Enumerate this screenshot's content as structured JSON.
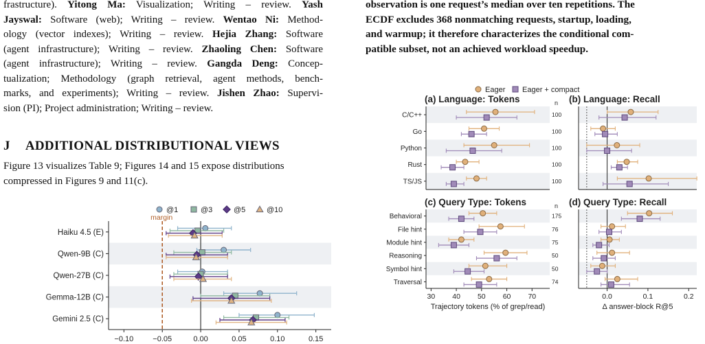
{
  "left_column": {
    "credits": [
      {
        "name": "",
        "role": "frastructure); Writing – review."
      },
      {
        "name": "Yitong Ma:",
        "role": "Visualization; Writing – review."
      },
      {
        "name": "Yash Jayswal:",
        "role": "Software (web); Writing – review."
      },
      {
        "name": "Wentao Ni:",
        "role": "Methodology (vector indexes); Writing – review."
      },
      {
        "name": "Hejia Zhang:",
        "role": "Software (agent infrastructure); Writing – review."
      },
      {
        "name": "Zhaoling Chen:",
        "role": "Software (agent infrastructure); Writing – review."
      },
      {
        "name": "Gangda Deng:",
        "role": "Conceptualization; Methodology (graph retrieval, agent methods, benchmarks, and experiments); Writing – review."
      },
      {
        "name": "Jishen Zhao:",
        "role": "Supervision (PI); Project administration; Writing – review."
      }
    ],
    "credit_lines": [
      "frastructure). |Yitong Ma:| Visualization; Writing – review. |Yash|",
      "|Jayswal:| Software (web); Writing – review. |Wentao Ni:| Method-",
      "ology (vector indexes); Writing – review. |Hejia Zhang:| Software",
      "(agent infrastructure); Writing – review. |Zhaoling Chen:| Software",
      "(agent infrastructure); Writing – review. |Gangda Deng:| Concep-",
      "tualization; Methodology (graph retrieval, agent methods, bench-",
      "marks, and experiments); Writing – review. |Jishen Zhao:| Supervi-",
      "sion (PI); Project administration; Writing – review."
    ],
    "section_letter": "J",
    "section_title": "ADDITIONAL DISTRIBUTIONAL VIEWS",
    "section_body_1": "Figure 13 visualizes Table 9; Figures 14 and 15 expose distributions",
    "section_body_2": "compressed in Figures 9 and 11(c)."
  },
  "right_column": {
    "caption_lines": [
      "observation is one request’s median over ten repetitions. The",
      "ECDF excludes 368 nonmatching requests, startup, loading,",
      "and warmup; it therefore characterizes the conditional com-",
      "patible subset, not an achieved workload speedup."
    ]
  },
  "chart_data": [
    {
      "type": "scatter",
      "legend": [
        "@1",
        "@3",
        "@5",
        "@10"
      ],
      "legend_placement": "top",
      "colors": {
        "@1": "#8fb3cc",
        "@3": "#8fb8a0",
        "@5": "#5b3a86",
        "@10": "#e0b483"
      },
      "reference_line_label": "margin",
      "reference_line_x": -0.05,
      "zero_line": 0,
      "categories": [
        "Haiku 4.5 (E)",
        "Qwen-9B (C)",
        "Qwen-27B (C)",
        "Gemma-12B (C)",
        "Gemini 2.5 (C)"
      ],
      "xticks": [
        "−0.10",
        "−0.05",
        "0.00",
        "0.05",
        "0.10",
        "0.15"
      ],
      "xlim": [
        -0.12,
        0.17
      ],
      "series": [
        {
          "name": "@1",
          "values": [
            0.006,
            0.03,
            0.002,
            0.077,
            0.1
          ],
          "lo": [
            -0.03,
            -0.005,
            -0.03,
            0.03,
            0.05
          ],
          "hi": [
            0.04,
            0.065,
            0.035,
            0.125,
            0.148
          ]
        },
        {
          "name": "@3",
          "values": [
            -0.004,
            0.002,
            0.0,
            0.045,
            0.072
          ],
          "lo": [
            -0.04,
            -0.035,
            -0.035,
            0.0,
            0.03
          ],
          "hi": [
            0.03,
            0.04,
            0.035,
            0.09,
            0.115
          ]
        },
        {
          "name": "@5",
          "values": [
            -0.01,
            -0.005,
            -0.003,
            0.04,
            0.068
          ],
          "lo": [
            -0.045,
            -0.045,
            -0.04,
            -0.01,
            0.025
          ],
          "hi": [
            0.028,
            0.035,
            0.035,
            0.09,
            0.11
          ]
        },
        {
          "name": "@10",
          "values": [
            -0.008,
            -0.006,
            0.003,
            0.04,
            0.066
          ],
          "lo": [
            -0.042,
            -0.045,
            -0.035,
            -0.012,
            0.02
          ],
          "hi": [
            0.028,
            0.035,
            0.04,
            0.092,
            0.112
          ]
        }
      ]
    },
    {
      "type": "scatter",
      "legend": [
        "Eager",
        "Eager + compact"
      ],
      "legend_placement": "top",
      "colors": {
        "Eager": "#e0b07a",
        "Eager + compact": "#a08ab8"
      },
      "panels": [
        {
          "title": "(a) Language: Tokens",
          "categories": [
            "C/C++",
            "Go",
            "Python",
            "Rust",
            "TS/JS"
          ],
          "n_header": "n",
          "n_values": [
            "100",
            "100",
            "100",
            "100",
            "100"
          ],
          "series": [
            {
              "name": "Eager",
              "values": [
                55.5,
                51,
                55,
                43.5,
                48
              ],
              "lo": [
                44,
                45,
                43,
                40,
                44
              ],
              "hi": [
                71,
                57,
                69,
                49,
                52
              ]
            },
            {
              "name": "Eager + compact",
              "values": [
                52,
                46,
                46.5,
                38.5,
                39
              ],
              "lo": [
                40,
                42,
                36,
                34,
                36
              ],
              "hi": [
                64,
                52,
                58,
                43,
                43
              ]
            }
          ]
        },
        {
          "title": "(b) Language: Recall",
          "categories": [
            "C/C++",
            "Go",
            "Python",
            "Rust",
            "TS/JS"
          ],
          "series": [
            {
              "name": "Eager",
              "values": [
                0.058,
                -0.01,
                0.024,
                0.048,
                0.102
              ],
              "lo": [
                0.0,
                -0.04,
                -0.05,
                0.025,
                0.025
              ],
              "hi": [
                0.125,
                0.02,
                0.08,
                0.075,
                0.22
              ]
            },
            {
              "name": "Eager + compact",
              "values": [
                0.043,
                -0.005,
                0.0,
                0.03,
                0.055
              ],
              "lo": [
                -0.02,
                -0.03,
                -0.05,
                0.01,
                -0.01
              ],
              "hi": [
                0.12,
                0.025,
                0.06,
                0.05,
                0.15
              ]
            }
          ]
        },
        {
          "title": "(c) Query Type: Tokens",
          "categories": [
            "Behavioral",
            "File hint",
            "Module hint",
            "Reasoning",
            "Symbol hint",
            "Traversal"
          ],
          "n_header": "n",
          "n_values": [
            "175",
            "76",
            "75",
            "50",
            "50",
            "74"
          ],
          "series": [
            {
              "name": "Eager",
              "values": [
                50.5,
                57.5,
                42,
                59.5,
                51.5,
                53
              ],
              "lo": [
                45,
                49,
                37,
                51,
                45,
                46
              ],
              "hi": [
                56,
                67,
                47,
                68,
                60,
                60
              ]
            },
            {
              "name": "Eager + compact",
              "values": [
                42,
                49.5,
                39,
                56,
                44.5,
                49
              ],
              "lo": [
                37,
                43,
                33,
                48,
                39,
                43
              ],
              "hi": [
                47,
                56,
                45,
                64,
                51,
                56
              ]
            }
          ]
        },
        {
          "title": "(d) Query Type: Recall",
          "categories": [
            "Behavioral",
            "File hint",
            "Module hint",
            "Reasoning",
            "Symbol hint",
            "Traversal"
          ],
          "series": [
            {
              "name": "Eager",
              "values": [
                0.103,
                0.012,
                0.006,
                0.012,
                -0.012,
                0.025
              ],
              "lo": [
                0.05,
                -0.015,
                -0.015,
                -0.025,
                -0.04,
                -0.005
              ],
              "hi": [
                0.16,
                0.045,
                0.03,
                0.055,
                0.02,
                0.075
              ]
            },
            {
              "name": "Eager + compact",
              "values": [
                0.08,
                0.005,
                -0.02,
                -0.008,
                -0.025,
                0.01
              ],
              "lo": [
                0.035,
                -0.02,
                -0.035,
                -0.035,
                -0.05,
                -0.015
              ],
              "hi": [
                0.13,
                0.035,
                0.005,
                0.02,
                0.0,
                0.055
              ]
            }
          ]
        }
      ],
      "token_xticks": [
        "30",
        "40",
        "50",
        "60",
        "70"
      ],
      "token_xlim": [
        28,
        77
      ],
      "recall_xticks": [
        "0.0",
        "0.1",
        "0.2"
      ],
      "recall_xlim": [
        -0.07,
        0.24
      ],
      "recall_reference_x": -0.05,
      "token_xlabel": "Trajectory tokens (% of grep/read)",
      "recall_xlabel": "Δ answer-block R@5"
    }
  ]
}
